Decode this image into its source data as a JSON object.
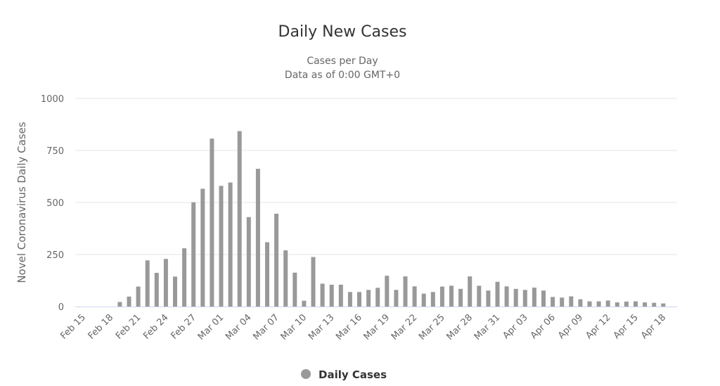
{
  "chart_data": {
    "type": "bar",
    "title": "Daily New Cases",
    "subtitle": [
      "Cases per Day",
      "Data as of 0:00 GMT+0"
    ],
    "xlabel": "",
    "ylabel": "Novel Coronavirus Daily Cases",
    "ylim": [
      0,
      1000
    ],
    "yticks": [
      0,
      250,
      500,
      750,
      1000
    ],
    "grid": true,
    "legend_position": "bottom-center",
    "bar_color": "#999999",
    "categories": [
      "Feb 15",
      "Feb 16",
      "Feb 17",
      "Feb 18",
      "Feb 19",
      "Feb 20",
      "Feb 21",
      "Feb 22",
      "Feb 23",
      "Feb 24",
      "Feb 25",
      "Feb 26",
      "Feb 27",
      "Feb 28",
      "Feb 29",
      "Mar 01",
      "Mar 02",
      "Mar 03",
      "Mar 04",
      "Mar 05",
      "Mar 06",
      "Mar 07",
      "Mar 08",
      "Mar 09",
      "Mar 10",
      "Mar 11",
      "Mar 12",
      "Mar 13",
      "Mar 14",
      "Mar 15",
      "Mar 16",
      "Mar 17",
      "Mar 18",
      "Mar 19",
      "Mar 20",
      "Mar 21",
      "Mar 22",
      "Mar 23",
      "Mar 24",
      "Mar 25",
      "Mar 26",
      "Mar 27",
      "Mar 28",
      "Mar 29",
      "Mar 30",
      "Mar 31",
      "Apr 01",
      "Apr 02",
      "Apr 03",
      "Apr 04",
      "Apr 05",
      "Apr 06",
      "Apr 07",
      "Apr 08",
      "Apr 09",
      "Apr 10",
      "Apr 11",
      "Apr 12",
      "Apr 13",
      "Apr 14",
      "Apr 15",
      "Apr 16",
      "Apr 17",
      "Apr 18"
    ],
    "xtick_labels": [
      "Feb 15",
      "Feb 18",
      "Feb 21",
      "Feb 24",
      "Feb 27",
      "Mar 01",
      "Mar 04",
      "Mar 07",
      "Mar 10",
      "Mar 13",
      "Mar 16",
      "Mar 19",
      "Mar 22",
      "Mar 25",
      "Mar 28",
      "Mar 31",
      "Apr 03",
      "Apr 06",
      "Apr 09",
      "Apr 12",
      "Apr 15",
      "Apr 18"
    ],
    "series": [
      {
        "name": "Daily Cases",
        "values": [
          0,
          0,
          0,
          0,
          22,
          48,
          96,
          222,
          162,
          229,
          144,
          280,
          501,
          566,
          807,
          580,
          596,
          843,
          430,
          662,
          309,
          446,
          270,
          163,
          28,
          238,
          110,
          105,
          105,
          70,
          70,
          80,
          90,
          148,
          80,
          145,
          97,
          62,
          70,
          96,
          100,
          85,
          145,
          100,
          77,
          119,
          97,
          85,
          80,
          91,
          77,
          46,
          43,
          49,
          35,
          25,
          25,
          29,
          20,
          24,
          25,
          20,
          18,
          15
        ]
      }
    ]
  }
}
